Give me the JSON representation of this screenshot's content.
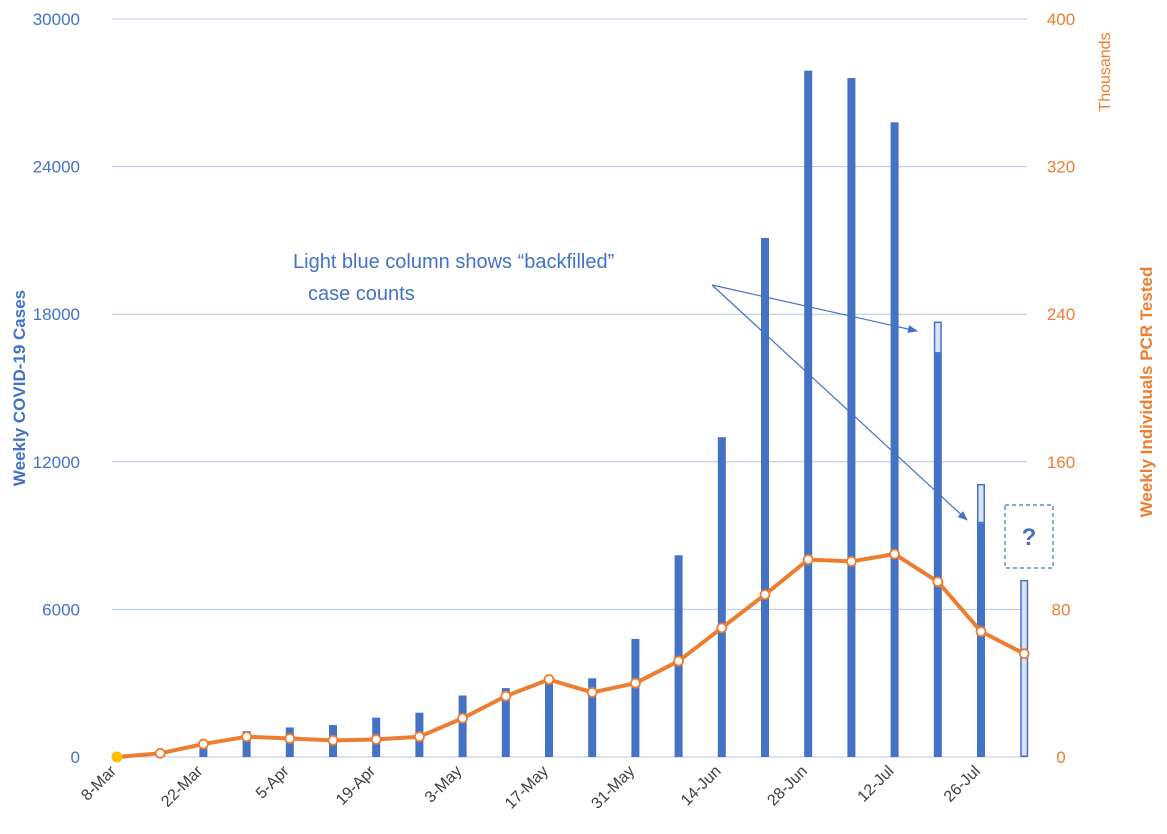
{
  "colors": {
    "bar": "#4472C4",
    "bar_backfill": "#DAE3F3",
    "line": "#ED7D31",
    "grid": "#B4C7E7",
    "first_point": "#FFC000"
  },
  "chart_data": {
    "type": "bar",
    "combo": "bar + line, dual y-axis",
    "x": [
      "8-Mar",
      "15-Mar",
      "22-Mar",
      "29-Mar",
      "5-Apr",
      "12-Apr",
      "19-Apr",
      "26-Apr",
      "3-May",
      "10-May",
      "17-May",
      "24-May",
      "31-May",
      "7-Jun",
      "14-Jun",
      "21-Jun",
      "28-Jun",
      "5-Jul",
      "12-Jul",
      "19-Jul",
      "26-Jul",
      "2-Aug"
    ],
    "x_tick_labels": [
      "8-Mar",
      "22-Mar",
      "5-Apr",
      "19-Apr",
      "3-May",
      "17-May",
      "31-May",
      "14-Jun",
      "28-Jun",
      "12-Jul",
      "26-Jul"
    ],
    "series": [
      {
        "name": "Weekly COVID-19 Cases",
        "type": "bar",
        "axis": "left",
        "values": [
          0,
          0,
          350,
          1050,
          1200,
          1300,
          1600,
          1800,
          2500,
          2800,
          3100,
          3200,
          4800,
          8200,
          13000,
          21100,
          27900,
          27600,
          25800,
          17700,
          11100,
          7200
        ],
        "backfilled_portion": [
          0,
          0,
          0,
          0,
          0,
          0,
          0,
          0,
          0,
          0,
          0,
          0,
          0,
          0,
          0,
          0,
          0,
          0,
          0,
          1300,
          1600,
          7200
        ]
      },
      {
        "name": "Weekly Individuals PCR Tested",
        "type": "line",
        "axis": "right",
        "units": "Thousands",
        "values": [
          0,
          2,
          7,
          11,
          10,
          9,
          9.5,
          11,
          21,
          33,
          42,
          35,
          40,
          52,
          70,
          88,
          107,
          106,
          110,
          95,
          68,
          56
        ]
      }
    ],
    "y_left": {
      "label": "Weekly COVID-19 Cases",
      "ylim": [
        0,
        30000
      ],
      "ticks": [
        0,
        6000,
        12000,
        18000,
        24000,
        30000
      ]
    },
    "y_right": {
      "label": "Weekly Individuals PCR Tested",
      "units_label": "Thousands",
      "ylim": [
        0,
        400
      ],
      "ticks": [
        0,
        80,
        160,
        240,
        320,
        400
      ]
    },
    "grid": true,
    "annotations": [
      {
        "text_line1": "Light blue column shows “backfilled”",
        "text_line2": "case counts"
      },
      {
        "text": "?"
      }
    ]
  }
}
